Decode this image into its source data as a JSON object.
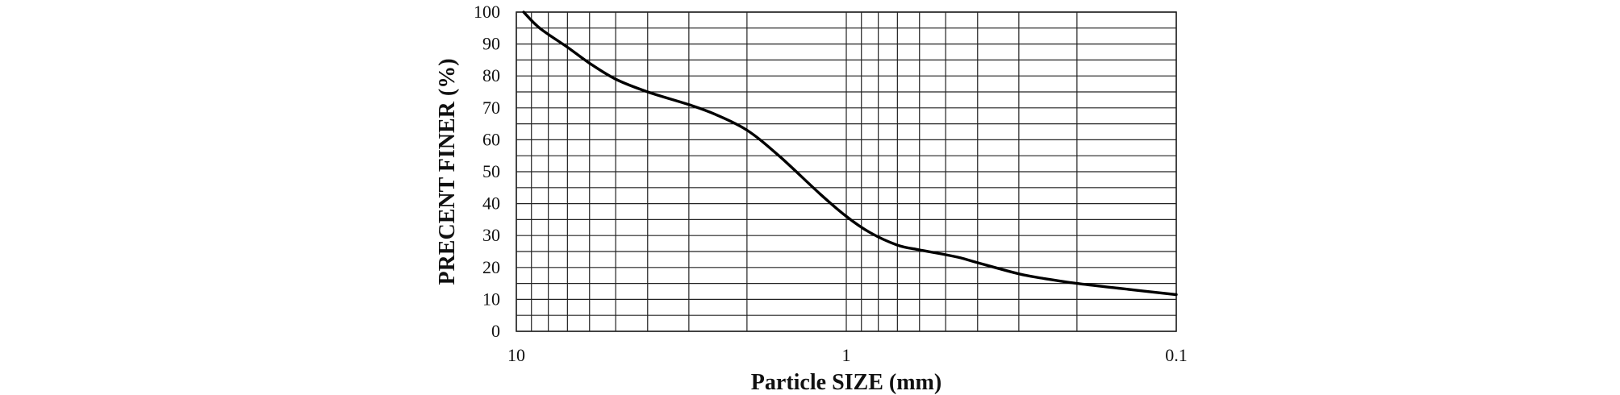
{
  "chart_data": {
    "type": "line",
    "xlabel": "Particle SIZE (mm)",
    "ylabel": "PRECENT FINER (%)",
    "x_scale": "log",
    "x_reversed": true,
    "xlim": [
      10,
      0.1
    ],
    "ylim": [
      0,
      100
    ],
    "x_ticks": [
      10,
      1,
      0.1
    ],
    "x_tick_labels": [
      "10",
      "1",
      "0.1"
    ],
    "y_ticks": [
      0,
      10,
      20,
      30,
      40,
      50,
      60,
      70,
      80,
      90,
      100
    ],
    "y_tick_labels": [
      "0",
      "10",
      "20",
      "30",
      "40",
      "50",
      "60",
      "70",
      "80",
      "90",
      "100"
    ],
    "y_minor_step": 5,
    "x_minor_grid": [
      9,
      8,
      7,
      6,
      5,
      4,
      3,
      2,
      0.9,
      0.8,
      0.7,
      0.6,
      0.5,
      0.4,
      0.3,
      0.2
    ],
    "grid": true,
    "legend": "none",
    "line_color": "#000000",
    "series": [
      {
        "x": [
          9.5,
          8.5,
          7.0,
          6.0,
          5.0,
          4.0,
          3.0,
          2.5,
          2.0,
          1.6,
          1.2,
          1.0,
          0.85,
          0.7,
          0.6,
          0.5,
          0.45,
          0.4,
          0.3,
          0.25,
          0.2,
          0.15,
          0.1
        ],
        "y": [
          100,
          95,
          89,
          84,
          79,
          75,
          71,
          68,
          63,
          55,
          43,
          36,
          31,
          27,
          25.5,
          24,
          23,
          21.5,
          18,
          16.5,
          15,
          13.5,
          11.5
        ]
      }
    ]
  }
}
